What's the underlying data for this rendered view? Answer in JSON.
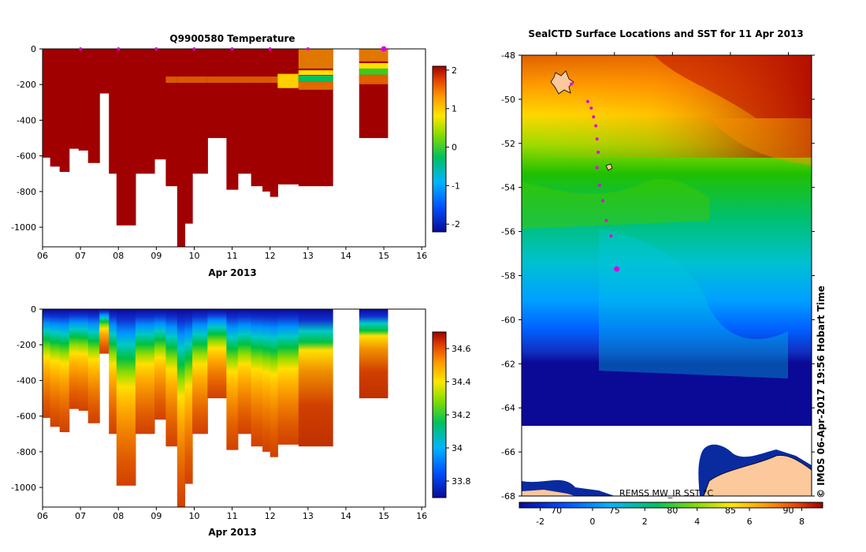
{
  "chart_data": [
    {
      "type": "heatmap",
      "title": "Q9900580  Temperature",
      "xlabel": "Apr 2013",
      "ylabel": "",
      "x_ticks": [
        "06",
        "07",
        "08",
        "09",
        "10",
        "11",
        "12",
        "13",
        "14",
        "15",
        "16"
      ],
      "x_range": [
        6,
        16.1
      ],
      "y_ticks": [
        "0",
        "-200",
        "-400",
        "-600",
        "-800",
        "-1000"
      ],
      "y_range": [
        -1110,
        0
      ],
      "profile_markers_day": [
        7,
        8,
        9,
        10,
        11,
        12,
        13,
        15
      ],
      "profiles": [
        {
          "start": 6.0,
          "end": 6.2,
          "depth": 610
        },
        {
          "start": 6.2,
          "end": 6.45,
          "depth": 660
        },
        {
          "start": 6.45,
          "end": 6.7,
          "depth": 690
        },
        {
          "start": 6.7,
          "end": 6.95,
          "depth": 560
        },
        {
          "start": 6.95,
          "end": 7.2,
          "depth": 570
        },
        {
          "start": 7.2,
          "end": 7.5,
          "depth": 640
        },
        {
          "start": 7.5,
          "end": 7.75,
          "depth": 250
        },
        {
          "start": 7.75,
          "end": 7.95,
          "depth": 700
        },
        {
          "start": 7.95,
          "end": 8.45,
          "depth": 990
        },
        {
          "start": 8.45,
          "end": 8.95,
          "depth": 700
        },
        {
          "start": 8.95,
          "end": 9.25,
          "depth": 620
        },
        {
          "start": 9.25,
          "end": 9.55,
          "depth": 770
        },
        {
          "start": 9.55,
          "end": 9.75,
          "depth": 1110
        },
        {
          "start": 9.75,
          "end": 9.95,
          "depth": 980
        },
        {
          "start": 9.95,
          "end": 10.35,
          "depth": 700
        },
        {
          "start": 10.35,
          "end": 10.85,
          "depth": 500
        },
        {
          "start": 10.85,
          "end": 11.15,
          "depth": 790
        },
        {
          "start": 11.15,
          "end": 11.5,
          "depth": 700
        },
        {
          "start": 11.5,
          "end": 11.8,
          "depth": 770
        },
        {
          "start": 11.8,
          "end": 12.0,
          "depth": 800
        },
        {
          "start": 12.0,
          "end": 12.2,
          "depth": 830
        },
        {
          "start": 12.2,
          "end": 12.75,
          "depth": 760
        },
        {
          "start": 12.75,
          "end": 13.65,
          "depth": 770
        },
        {
          "start": 14.35,
          "end": 15.1,
          "depth": 500
        }
      ],
      "colorbar": {
        "ticks": [
          "2",
          "1",
          "0",
          "-1",
          "-2"
        ],
        "range": [
          -2.2,
          2.1
        ]
      }
    },
    {
      "type": "heatmap",
      "title": "",
      "xlabel": "Apr 2013",
      "ylabel": "",
      "x_ticks": [
        "06",
        "07",
        "08",
        "09",
        "10",
        "11",
        "12",
        "13",
        "14",
        "15",
        "16"
      ],
      "x_range": [
        6,
        16.1
      ],
      "y_ticks": [
        "0",
        "-200",
        "-400",
        "-600",
        "-800",
        "-1000"
      ],
      "y_range": [
        -1110,
        0
      ],
      "colorbar": {
        "ticks": [
          "34.6",
          "34.4",
          "34.2",
          "34",
          "33.8"
        ],
        "range": [
          33.7,
          34.7
        ]
      }
    },
    {
      "type": "heatmap",
      "title": "SealCTD Surface Locations and SST for 11 Apr 2013",
      "xlabel": "",
      "ylabel": "",
      "y_ticks": [
        "-48",
        "-50",
        "-52",
        "-54",
        "-56",
        "-58",
        "-60",
        "-62",
        "-64",
        "-66",
        "-68"
      ],
      "y_range": [
        -68,
        -48
      ],
      "x_range": [
        67,
        92
      ],
      "x_ticks_top": [
        "70",
        "75",
        "80",
        "85",
        "90"
      ],
      "colorbar_ticks": [
        "-2",
        "0",
        "2",
        "4",
        "6",
        "8"
      ],
      "colorbar_range": [
        -2.8,
        8.8
      ],
      "track_lat": [
        -49.3,
        -50.1,
        -50.4,
        -50.8,
        -51.2,
        -51.8,
        -52.4,
        -53.1,
        -53.9,
        -54.6,
        -55.5,
        -56.2,
        -57.7
      ],
      "source_label": "REMSS MW_IR SST °C",
      "credit": "© IMOS 06-Apr-2017 19:56 Hobart Time"
    }
  ]
}
